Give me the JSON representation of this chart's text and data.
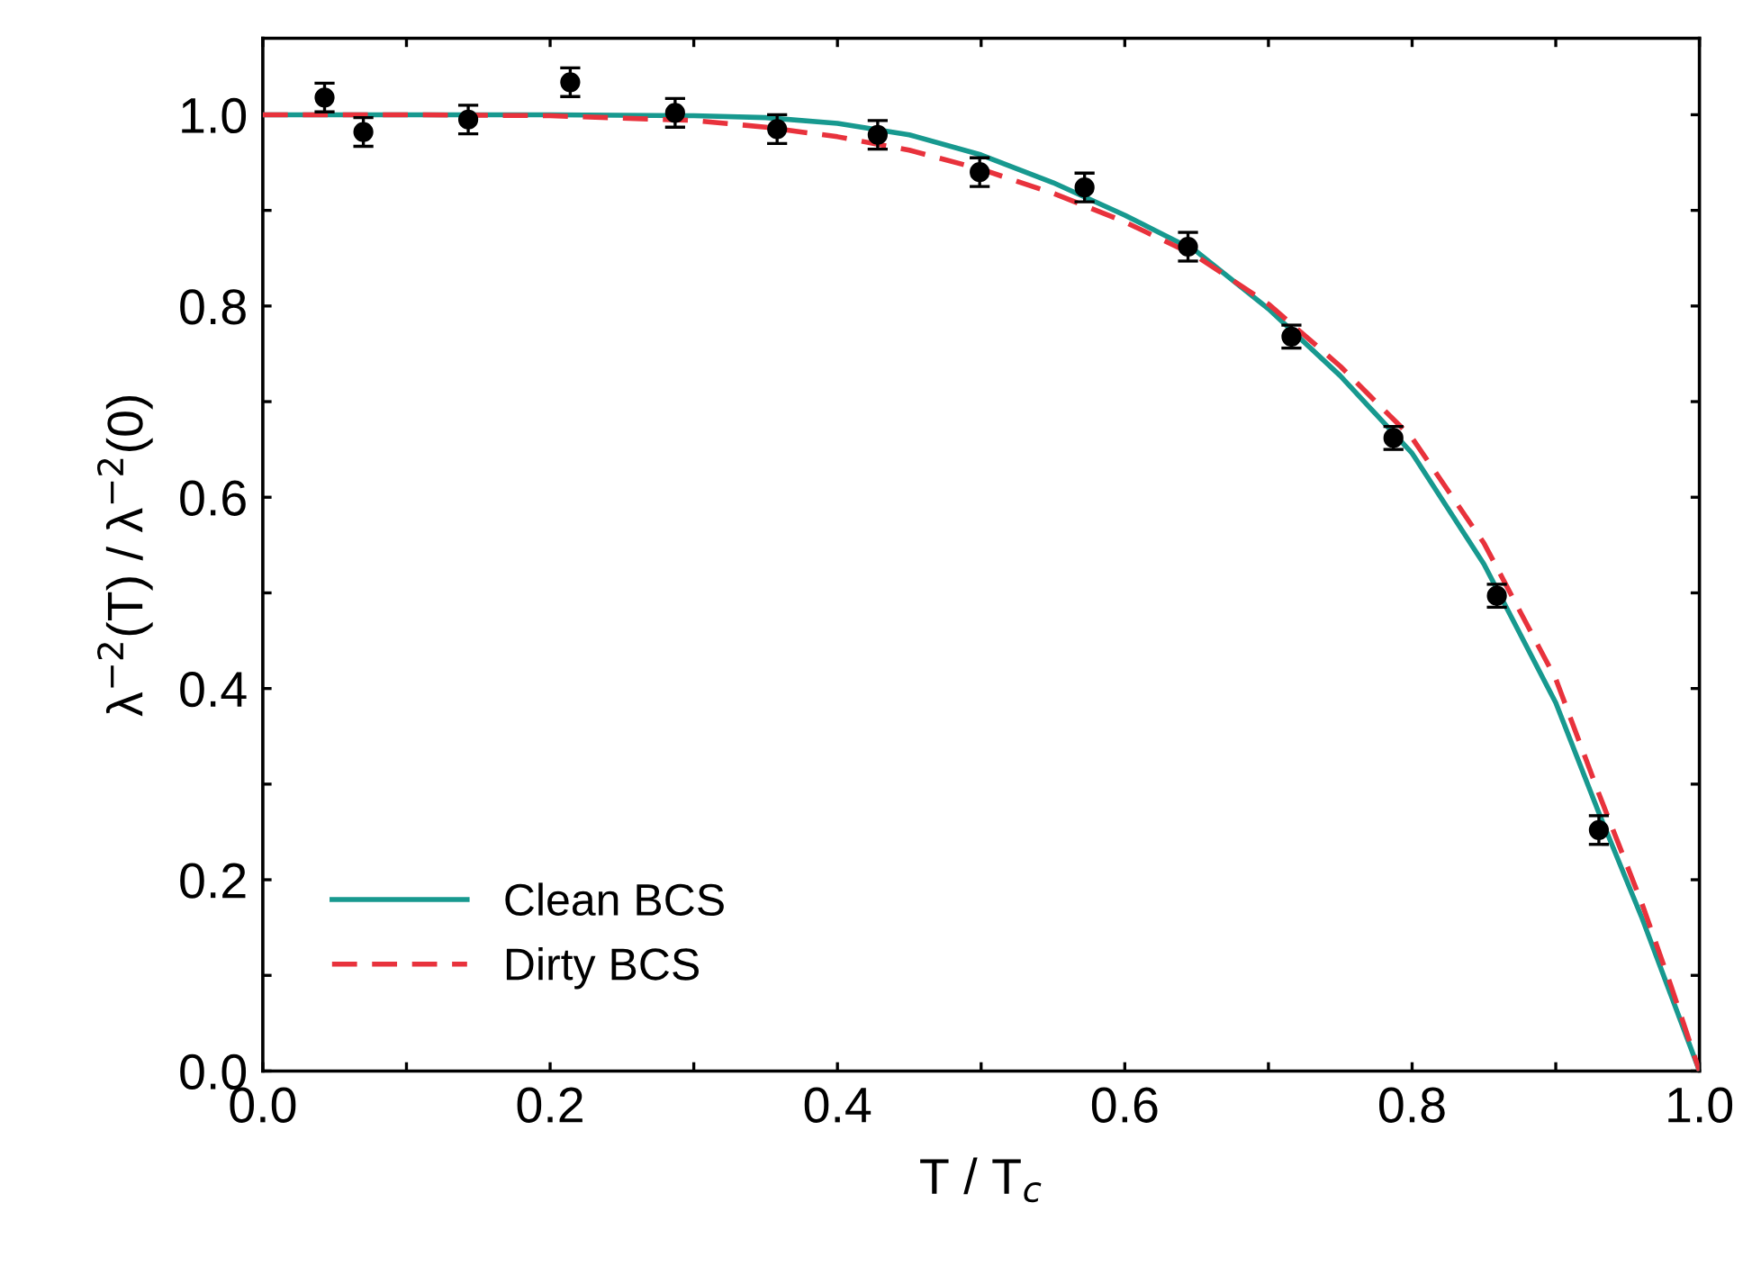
{
  "chart_data": {
    "type": "scatter",
    "xlabel": "T / T$_{c}$",
    "ylabel": "λ$^{−2}$(T) / λ$^{−2}$(0)",
    "xlim": [
      0,
      1.0
    ],
    "ylim": [
      0,
      1.08
    ],
    "xticks": [
      {
        "value": 0,
        "label": "0.0"
      },
      {
        "value": 0.1,
        "label": null
      },
      0.2,
      {
        "value": 0.3,
        "label": null
      },
      0.4,
      {
        "value": 0.5,
        "label": null
      },
      0.6,
      {
        "value": 0.7,
        "label": null
      },
      0.8,
      {
        "value": 0.9,
        "label": null
      },
      {
        "value": 1,
        "label": "1.0"
      }
    ],
    "yticks": [
      {
        "value": 0,
        "label": "0.0"
      },
      {
        "value": 0.1,
        "label": null
      },
      0.2,
      {
        "value": 0.3,
        "label": null
      },
      0.4,
      {
        "value": 0.5,
        "label": null
      },
      0.6,
      {
        "value": 0.7,
        "label": null
      },
      0.8,
      {
        "value": 0.9,
        "label": null
      },
      {
        "value": 1,
        "label": "1.0"
      }
    ],
    "grid": false,
    "legend": "bottom left",
    "series": [
      {
        "color": "#000000",
        "marker": "circle",
        "x": [
          0.043,
          0.07,
          0.143,
          0.214,
          0.287,
          0.358,
          0.428,
          0.499,
          0.572,
          0.644,
          0.716,
          0.787,
          0.859,
          0.93
        ],
        "values": [
          1.018,
          0.982,
          0.995,
          1.034,
          1.002,
          0.985,
          0.979,
          0.94,
          0.924,
          0.862,
          0.768,
          0.662,
          0.497,
          0.252
        ],
        "errors": [
          0.015,
          0.015,
          0.015,
          0.015,
          0.015,
          0.015,
          0.015,
          0.015,
          0.015,
          0.015,
          0.012,
          0.012,
          0.012,
          0.015
        ]
      },
      {
        "type": "line",
        "name": "Clean BCS",
        "color": "#17998f",
        "line_style": "solid",
        "x": [
          0.0,
          0.1,
          0.2,
          0.3,
          0.35,
          0.4,
          0.45,
          0.5,
          0.55,
          0.6,
          0.65,
          0.7,
          0.75,
          0.8,
          0.85,
          0.9,
          0.93,
          0.96,
          0.98,
          1.0
        ],
        "values": [
          1.0,
          1.0,
          1.0,
          0.999,
          0.997,
          0.991,
          0.979,
          0.958,
          0.929,
          0.895,
          0.857,
          0.797,
          0.727,
          0.646,
          0.53,
          0.385,
          0.27,
          0.16,
          0.08,
          0.0
        ]
      },
      {
        "type": "line",
        "name": "Dirty BCS",
        "color": "#e8323c",
        "line_style": "dashed",
        "x": [
          0.0,
          0.1,
          0.2,
          0.3,
          0.35,
          0.4,
          0.45,
          0.5,
          0.55,
          0.6,
          0.65,
          0.7,
          0.75,
          0.8,
          0.85,
          0.9,
          0.93,
          0.96,
          0.98,
          1.0
        ],
        "values": [
          1.0,
          1.0,
          0.999,
          0.994,
          0.987,
          0.977,
          0.963,
          0.943,
          0.918,
          0.888,
          0.852,
          0.802,
          0.737,
          0.662,
          0.552,
          0.41,
          0.29,
          0.175,
          0.09,
          0.0
        ]
      }
    ]
  }
}
